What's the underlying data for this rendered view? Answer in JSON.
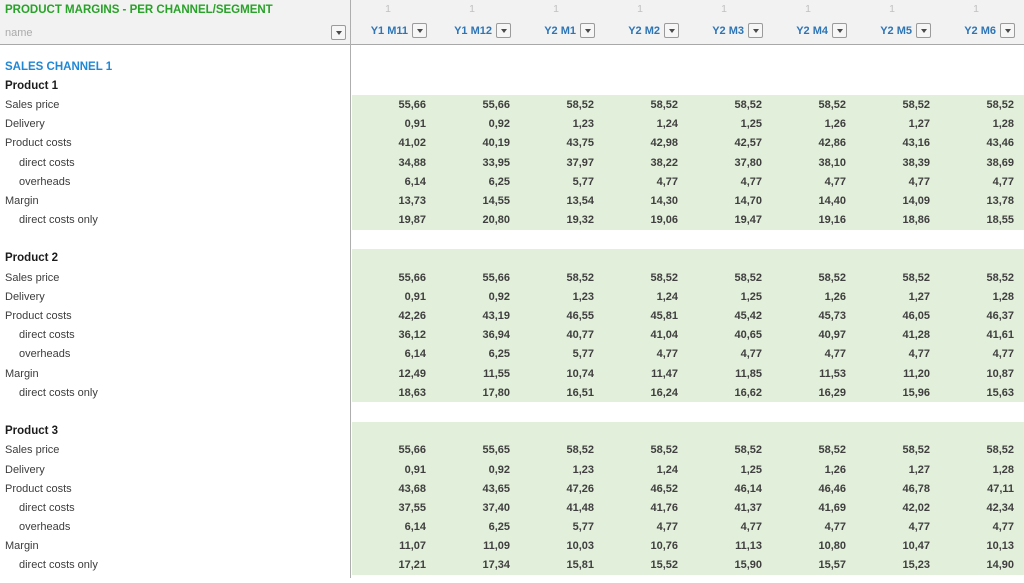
{
  "header": {
    "title": "PRODUCT MARGINS - PER CHANNEL/SEGMENT",
    "name_filter_label": "name",
    "group_row_label": "1",
    "columns": [
      "Y1 M11",
      "Y1 M12",
      "Y2 M1",
      "Y2 M2",
      "Y2 M3",
      "Y2 M4",
      "Y2 M5",
      "Y2 M6"
    ]
  },
  "section_title": "SALES CHANNEL 1",
  "products": [
    {
      "name": "Product 1",
      "heading_in_band": false,
      "rows": [
        {
          "label": "Sales price",
          "indent": 0,
          "values": [
            "55,66",
            "55,66",
            "58,52",
            "58,52",
            "58,52",
            "58,52",
            "58,52",
            "58,52"
          ]
        },
        {
          "label": "Delivery",
          "indent": 0,
          "values": [
            "0,91",
            "0,92",
            "1,23",
            "1,24",
            "1,25",
            "1,26",
            "1,27",
            "1,28"
          ]
        },
        {
          "label": "Product costs",
          "indent": 0,
          "values": [
            "41,02",
            "40,19",
            "43,75",
            "42,98",
            "42,57",
            "42,86",
            "43,16",
            "43,46"
          ]
        },
        {
          "label": "direct costs",
          "indent": 1,
          "values": [
            "34,88",
            "33,95",
            "37,97",
            "38,22",
            "37,80",
            "38,10",
            "38,39",
            "38,69"
          ]
        },
        {
          "label": "overheads",
          "indent": 1,
          "values": [
            "6,14",
            "6,25",
            "5,77",
            "4,77",
            "4,77",
            "4,77",
            "4,77",
            "4,77"
          ]
        },
        {
          "label": "Margin",
          "indent": 0,
          "values": [
            "13,73",
            "14,55",
            "13,54",
            "14,30",
            "14,70",
            "14,40",
            "14,09",
            "13,78"
          ]
        },
        {
          "label": "direct costs only",
          "indent": 1,
          "values": [
            "19,87",
            "20,80",
            "19,32",
            "19,06",
            "19,47",
            "19,16",
            "18,86",
            "18,55"
          ]
        }
      ]
    },
    {
      "name": "Product 2",
      "heading_in_band": true,
      "rows": [
        {
          "label": "Sales price",
          "indent": 0,
          "values": [
            "55,66",
            "55,66",
            "58,52",
            "58,52",
            "58,52",
            "58,52",
            "58,52",
            "58,52"
          ]
        },
        {
          "label": "Delivery",
          "indent": 0,
          "values": [
            "0,91",
            "0,92",
            "1,23",
            "1,24",
            "1,25",
            "1,26",
            "1,27",
            "1,28"
          ]
        },
        {
          "label": "Product costs",
          "indent": 0,
          "values": [
            "42,26",
            "43,19",
            "46,55",
            "45,81",
            "45,42",
            "45,73",
            "46,05",
            "46,37"
          ]
        },
        {
          "label": "direct costs",
          "indent": 1,
          "values": [
            "36,12",
            "36,94",
            "40,77",
            "41,04",
            "40,65",
            "40,97",
            "41,28",
            "41,61"
          ]
        },
        {
          "label": "overheads",
          "indent": 1,
          "values": [
            "6,14",
            "6,25",
            "5,77",
            "4,77",
            "4,77",
            "4,77",
            "4,77",
            "4,77"
          ]
        },
        {
          "label": "Margin",
          "indent": 0,
          "values": [
            "12,49",
            "11,55",
            "10,74",
            "11,47",
            "11,85",
            "11,53",
            "11,20",
            "10,87"
          ]
        },
        {
          "label": "direct costs only",
          "indent": 1,
          "values": [
            "18,63",
            "17,80",
            "16,51",
            "16,24",
            "16,62",
            "16,29",
            "15,96",
            "15,63"
          ]
        }
      ]
    },
    {
      "name": "Product 3",
      "heading_in_band": true,
      "rows": [
        {
          "label": "Sales price",
          "indent": 0,
          "values": [
            "55,66",
            "55,65",
            "58,52",
            "58,52",
            "58,52",
            "58,52",
            "58,52",
            "58,52"
          ]
        },
        {
          "label": "Delivery",
          "indent": 0,
          "values": [
            "0,91",
            "0,92",
            "1,23",
            "1,24",
            "1,25",
            "1,26",
            "1,27",
            "1,28"
          ]
        },
        {
          "label": "Product costs",
          "indent": 0,
          "values": [
            "43,68",
            "43,65",
            "47,26",
            "46,52",
            "46,14",
            "46,46",
            "46,78",
            "47,11"
          ]
        },
        {
          "label": "direct costs",
          "indent": 1,
          "values": [
            "37,55",
            "37,40",
            "41,48",
            "41,76",
            "41,37",
            "41,69",
            "42,02",
            "42,34"
          ]
        },
        {
          "label": "overheads",
          "indent": 1,
          "values": [
            "6,14",
            "6,25",
            "5,77",
            "4,77",
            "4,77",
            "4,77",
            "4,77",
            "4,77"
          ]
        },
        {
          "label": "Margin",
          "indent": 0,
          "values": [
            "11,07",
            "11,09",
            "10,03",
            "10,76",
            "11,13",
            "10,80",
            "10,47",
            "10,13"
          ]
        },
        {
          "label": "direct costs only",
          "indent": 1,
          "values": [
            "17,21",
            "17,34",
            "15,81",
            "15,52",
            "15,90",
            "15,57",
            "15,23",
            "14,90"
          ]
        }
      ]
    }
  ],
  "colors": {
    "title_green": "#28a228",
    "column_header_blue": "#2e75b6",
    "section_blue": "#1f87d5",
    "band_green": "#e2efda",
    "header_bg": "#f2f2f2",
    "muted_gray": "#ababab"
  }
}
